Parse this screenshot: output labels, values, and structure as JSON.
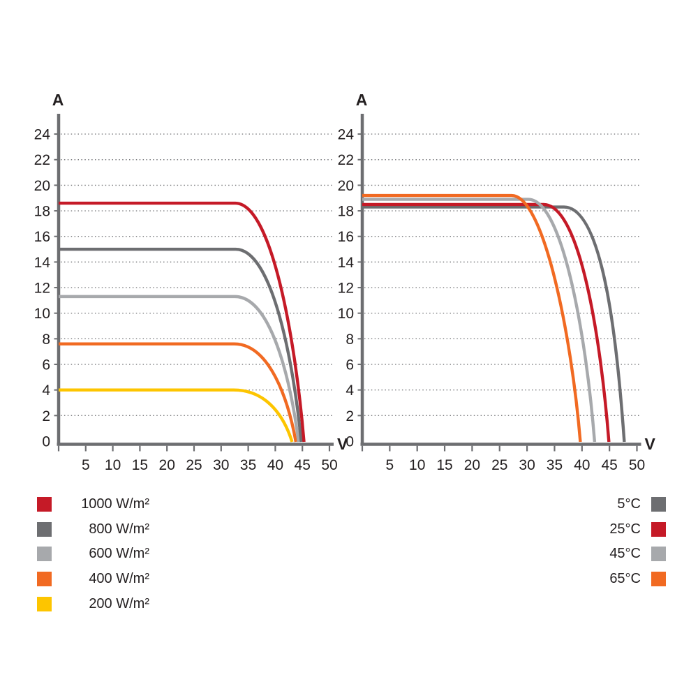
{
  "page": {
    "background": "#ffffff"
  },
  "colors": {
    "axis": "#6d6e71",
    "grid": "#7b7c7f",
    "text": "#231f20",
    "red": "#c51a27",
    "dark_gray": "#6d6e71",
    "light_gray": "#a7a9ac",
    "orange": "#f16a22",
    "yellow": "#fdc500"
  },
  "chart_data": [
    {
      "type": "line",
      "id": "iv-curve-by-irradiance",
      "title": "",
      "ylabel": "A",
      "xlabel": "V",
      "xlim": [
        0,
        50
      ],
      "ylim": [
        0,
        25.5
      ],
      "x_ticks": [
        5,
        10,
        15,
        20,
        25,
        30,
        35,
        40,
        45,
        50
      ],
      "y_ticks": [
        0,
        2,
        4,
        6,
        8,
        10,
        12,
        14,
        16,
        18,
        20,
        22,
        24
      ],
      "grid": "horizontal-dotted",
      "legend_position": "below-left",
      "series": [
        {
          "name": "1000 W/m²",
          "color": "#c51a27",
          "isc": 18.6,
          "voc": 45.3,
          "knee": 0.77
        },
        {
          "name": "800 W/m²",
          "color": "#6d6e71",
          "isc": 15.0,
          "voc": 44.8,
          "knee": 0.78
        },
        {
          "name": "600 W/m²",
          "color": "#a7a9ac",
          "isc": 11.3,
          "voc": 44.3,
          "knee": 0.785
        },
        {
          "name": "400 W/m²",
          "color": "#f16a22",
          "isc": 7.6,
          "voc": 43.8,
          "knee": 0.79
        },
        {
          "name": "200 W/m²",
          "color": "#fdc500",
          "isc": 4.0,
          "voc": 43.1,
          "knee": 0.8
        }
      ]
    },
    {
      "type": "line",
      "id": "iv-curve-by-temperature",
      "title": "",
      "ylabel": "A",
      "xlabel": "V",
      "xlim": [
        0,
        50
      ],
      "ylim": [
        0,
        25.5
      ],
      "x_ticks": [
        5,
        10,
        15,
        20,
        25,
        30,
        35,
        40,
        45,
        50
      ],
      "y_ticks": [
        0,
        2,
        4,
        6,
        8,
        10,
        12,
        14,
        16,
        18,
        20,
        22,
        24
      ],
      "grid": "horizontal-dotted",
      "legend_position": "below-right",
      "series": [
        {
          "name": "5°C",
          "color": "#6d6e71",
          "isc": 18.3,
          "voc": 47.7,
          "knee": 0.82
        },
        {
          "name": "25°C",
          "color": "#c51a27",
          "isc": 18.5,
          "voc": 44.9,
          "knee": 0.785
        },
        {
          "name": "45°C",
          "color": "#a7a9ac",
          "isc": 18.9,
          "voc": 42.3,
          "knee": 0.765
        },
        {
          "name": "65°C",
          "color": "#f16a22",
          "isc": 19.2,
          "voc": 39.7,
          "knee": 0.735
        }
      ]
    }
  ]
}
